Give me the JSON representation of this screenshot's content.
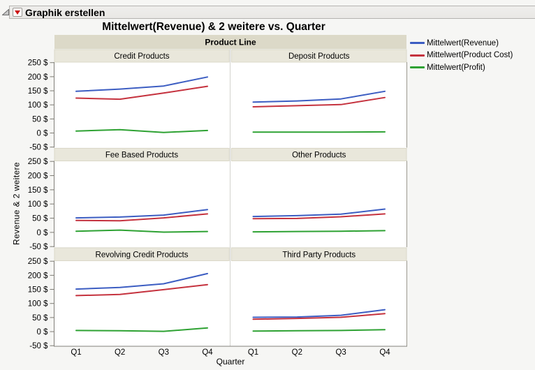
{
  "window": {
    "outline_title": "Graphik erstellen",
    "disclosure_icon": "open-triangle",
    "menu_icon": "red-triangle-menu"
  },
  "chart_data": {
    "type": "line",
    "title": "Mittelwert(Revenue) & 2 weitere vs. Quarter",
    "xlabel": "Quarter",
    "ylabel": "Revenue & 2 weitere",
    "x_categories": [
      "Q1",
      "Q2",
      "Q3",
      "Q4"
    ],
    "ylim": [
      -50,
      250
    ],
    "ytick_step": 50,
    "ytick_labels": [
      "250 $",
      "200 $",
      "150 $",
      "100 $",
      "50 $",
      "0 $",
      "-50 $"
    ],
    "grid": false,
    "legend_position": "top-right",
    "trellis": {
      "group_label": "Product Line",
      "columns": 2,
      "rows": 3
    },
    "series": [
      {
        "name": "Mittelwert(Revenue)",
        "color": "#3c5dc2"
      },
      {
        "name": "Mittelwert(Product Cost)",
        "color": "#c5323e"
      },
      {
        "name": "Mittelwert(Profit)",
        "color": "#2ea233"
      }
    ],
    "panels": [
      {
        "label": "Credit Products",
        "values": [
          [
            148,
            156,
            167,
            199
          ],
          [
            124,
            120,
            142,
            166
          ],
          [
            7,
            12,
            2,
            9
          ]
        ]
      },
      {
        "label": "Deposit Products",
        "values": [
          [
            110,
            114,
            121,
            148
          ],
          [
            93,
            97,
            101,
            126
          ],
          [
            3,
            3,
            3,
            4
          ]
        ]
      },
      {
        "label": "Fee Based Products",
        "values": [
          [
            51,
            54,
            61,
            80
          ],
          [
            42,
            41,
            51,
            65
          ],
          [
            4,
            8,
            1,
            3
          ]
        ]
      },
      {
        "label": "Other Products",
        "values": [
          [
            56,
            59,
            64,
            82
          ],
          [
            48,
            49,
            55,
            65
          ],
          [
            2,
            3,
            4,
            6
          ]
        ]
      },
      {
        "label": "Revolving Credit Products",
        "values": [
          [
            151,
            157,
            170,
            206
          ],
          [
            128,
            132,
            149,
            167
          ],
          [
            4,
            3,
            1,
            13
          ]
        ]
      },
      {
        "label": "Third Party Products",
        "values": [
          [
            51,
            52,
            58,
            78
          ],
          [
            44,
            47,
            51,
            64
          ],
          [
            2,
            3,
            4,
            7
          ]
        ]
      }
    ]
  },
  "colors": {
    "window_bg": "#f6f6f4",
    "bar_bg": "#ecebe8",
    "group_strip_bg": "#dcd9c8",
    "panel_strip_bg": "#e9e7db",
    "plot_bg": "#ffffff",
    "divider_line": "#d2d2ce",
    "axis_line": "#82807a",
    "tick_color": "#7d7b74",
    "text": "#000000"
  }
}
